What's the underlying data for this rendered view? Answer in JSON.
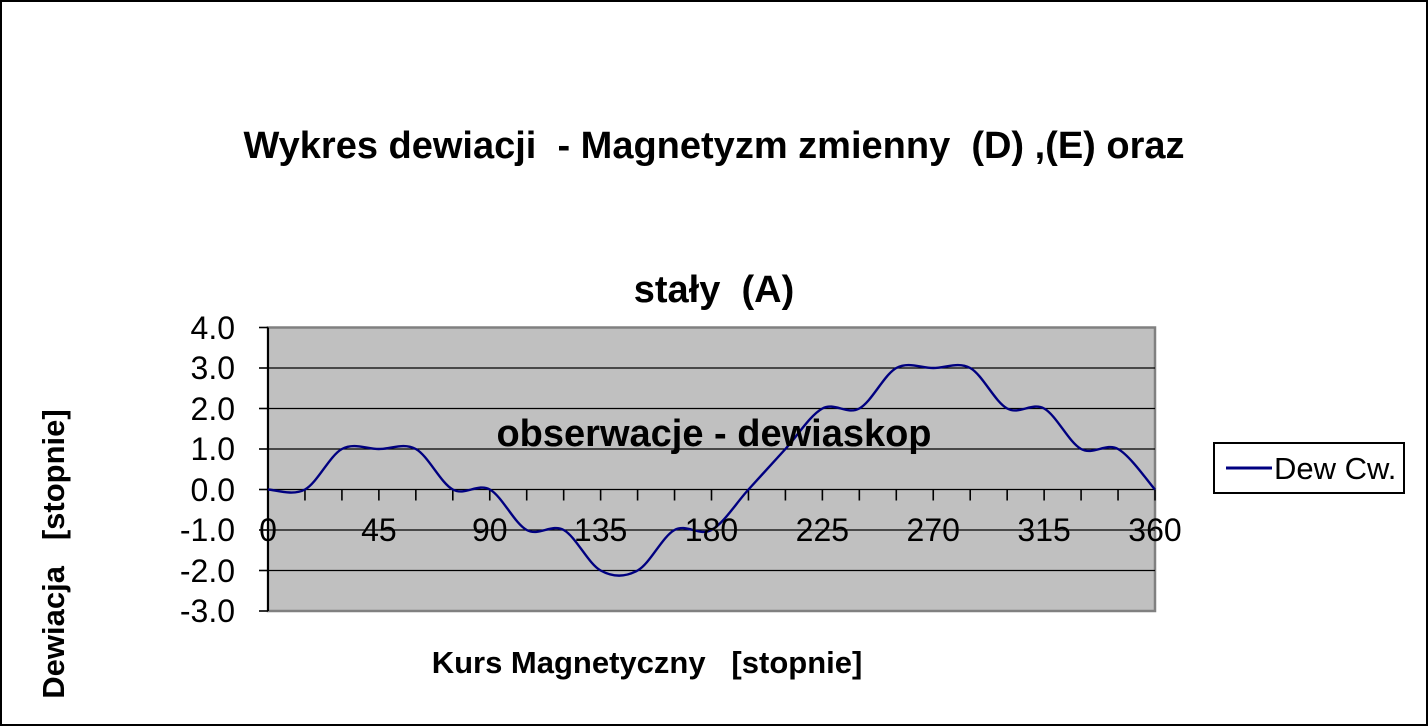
{
  "chart_data": {
    "type": "line",
    "title": "Wykres dewiacji  - Magnetyzm zmienny  (D) ,(E) oraz stały  (A) obserwacje - dewiaskop",
    "title_lines": [
      "Wykres dewiacji  - Magnetyzm zmienny  (D) ,(E) oraz",
      "stały  (A)",
      "obserwacje - dewiaskop"
    ],
    "xlabel": "Kurs Magnetyczny   [stopnie]",
    "ylabel": "Dewiacja   [stopnie]",
    "xlim": [
      0,
      360
    ],
    "ylim": [
      -3,
      4
    ],
    "x_ticks": [
      0,
      45,
      90,
      135,
      180,
      225,
      270,
      315,
      360
    ],
    "x_minor_tick_step": 15,
    "y_tick_values": [
      4,
      3,
      2,
      1,
      0,
      -1,
      -2,
      -3
    ],
    "y_tick_labels": [
      "4.0",
      "3.0",
      "2.0",
      "1.0",
      "0.0",
      "-1.0",
      "-2.0",
      "-3.0"
    ],
    "grid": "horizontal",
    "legend_position": "right",
    "smooth_line": true,
    "plot_bg": "#c0c0c0",
    "plot_border": "#808080",
    "grid_color": "#000000",
    "axis_color": "#000000",
    "line_color": "#000080",
    "series": [
      {
        "name": "Dew Cw.",
        "x": [
          0,
          15,
          30,
          45,
          60,
          75,
          90,
          105,
          120,
          135,
          150,
          165,
          180,
          195,
          210,
          225,
          240,
          255,
          270,
          285,
          300,
          315,
          330,
          345,
          360
        ],
        "values": [
          0,
          0,
          1,
          1,
          1,
          0,
          0,
          -1,
          -1,
          -2,
          -2,
          -1,
          -1,
          0,
          1,
          2,
          2,
          3,
          3,
          3,
          2,
          2,
          1,
          1,
          0
        ]
      }
    ]
  }
}
